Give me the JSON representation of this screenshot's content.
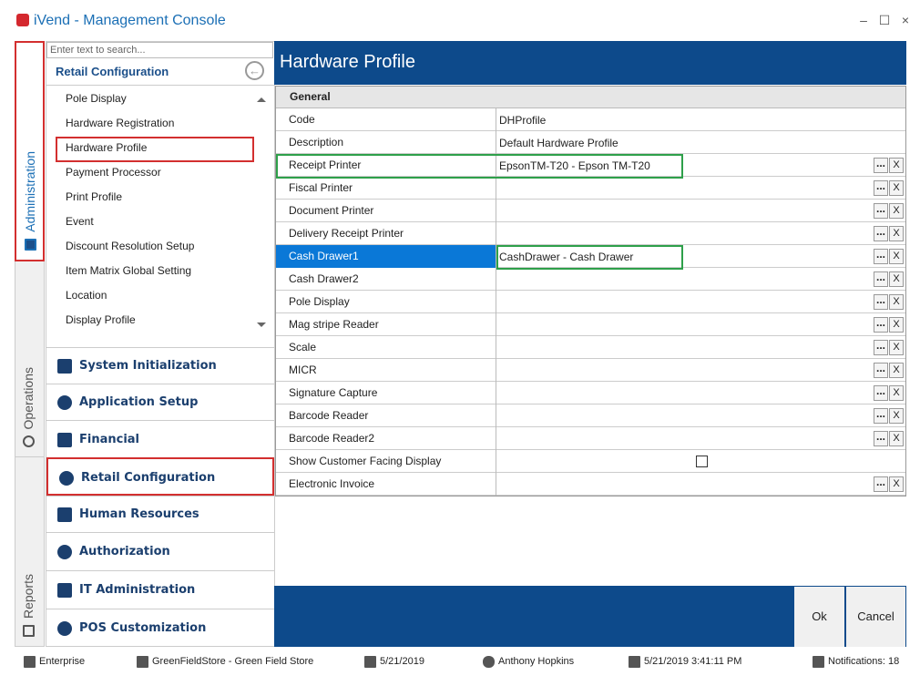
{
  "window": {
    "title": "iVend - Management Console",
    "controls": [
      "–",
      "☐",
      "×"
    ]
  },
  "side_tabs": [
    "Administration",
    "Operations",
    "Reports"
  ],
  "nav": {
    "search_placeholder": "Enter text to search...",
    "header": "Retail Configuration",
    "items": [
      "Pole Display",
      "Hardware Registration",
      "Hardware Profile",
      "Payment Processor",
      "Print Profile",
      "Event",
      "Discount Resolution Setup",
      "Item Matrix Global Setting",
      "Location",
      "Display Profile"
    ],
    "categories": [
      "System Initialization",
      "Application Setup",
      "Financial",
      "Retail Configuration",
      "Human Resources",
      "Authorization",
      "IT Administration",
      "POS Customization"
    ]
  },
  "panel": {
    "title": "Hardware Profile",
    "section": "General",
    "browse_button": "...",
    "clear_button": "X",
    "rows": [
      {
        "label": "Code",
        "value": "DHProfile",
        "buttons": false
      },
      {
        "label": "Description",
        "value": "Default Hardware Profile",
        "buttons": false
      },
      {
        "label": "Receipt Printer",
        "value": "EpsonTM-T20 - Epson TM-T20",
        "buttons": true
      },
      {
        "label": "Fiscal Printer",
        "buttons": true
      },
      {
        "label": "Document Printer",
        "buttons": true
      },
      {
        "label": "Delivery Receipt Printer",
        "buttons": true
      },
      {
        "label": "Cash Drawer1",
        "value": "CashDrawer - Cash Drawer",
        "buttons": true,
        "selected": true
      },
      {
        "label": "Cash Drawer2",
        "buttons": true
      },
      {
        "label": "Pole Display",
        "buttons": true
      },
      {
        "label": "Mag stripe Reader",
        "buttons": true
      },
      {
        "label": "Scale",
        "buttons": true
      },
      {
        "label": "MICR",
        "buttons": true
      },
      {
        "label": "Signature Capture",
        "buttons": true
      },
      {
        "label": "Barcode Reader",
        "buttons": true
      },
      {
        "label": "Barcode Reader2",
        "buttons": true
      },
      {
        "label": "Show Customer Facing Display",
        "checkbox": false,
        "buttons": false
      },
      {
        "label": "Electronic Invoice",
        "buttons": true
      }
    ],
    "ok": "Ok",
    "cancel": "Cancel"
  },
  "status_bar": [
    "Enterprise",
    "GreenFieldStore - Green Field Store",
    "5/21/2019",
    "Anthony Hopkins",
    "5/21/2019 3:41:11 PM",
    "Notifications: 18"
  ]
}
